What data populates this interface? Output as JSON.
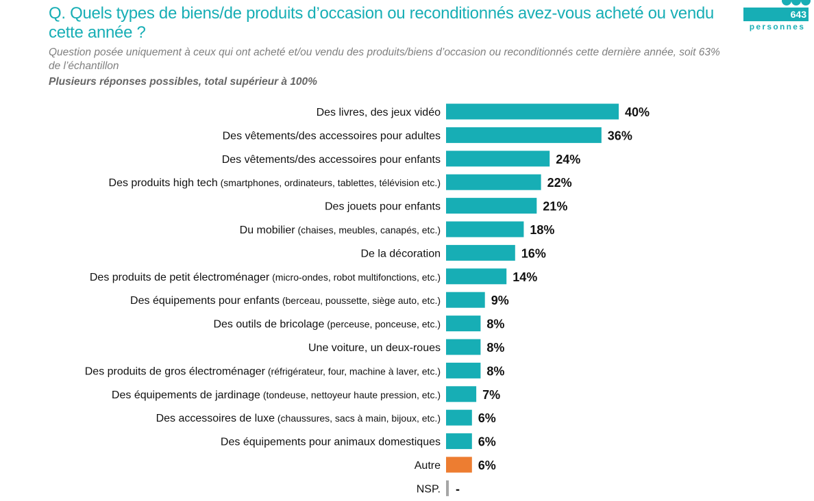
{
  "header": {
    "title": "Q. Quels types de biens/de produits d’occasion ou reconditionnés avez-vous acheté ou vendu cette année ?",
    "subtitle": "Question posée uniquement à ceux qui ont acheté et/ou vendu des produits/biens d’occasion ou reconditionnés cette dernière année, soit 63% de l’échantillon",
    "note": "Plusieurs réponses possibles, total supérieur à 100%"
  },
  "badge": {
    "count": "643",
    "label": "personnes",
    "icon": "people-icon"
  },
  "colors": {
    "accent": "#17AEB5",
    "other": "#ED7D31",
    "nsp": "#A6A6A6"
  },
  "chart_data": {
    "type": "bar",
    "orientation": "horizontal",
    "title": "Q. Quels types de biens/de produits d’occasion ou reconditionnés avez-vous acheté ou vendu cette année ?",
    "xlabel": "",
    "ylabel": "",
    "xlim": [
      0,
      40
    ],
    "grid": false,
    "legend": "none",
    "categories": [
      {
        "main": "Des livres, des jeux vidéo",
        "detail": ""
      },
      {
        "main": "Des vêtements/des accessoires pour adultes",
        "detail": ""
      },
      {
        "main": "Des vêtements/des accessoires pour enfants",
        "detail": ""
      },
      {
        "main": "Des produits high tech",
        "detail": "(smartphones, ordinateurs, tablettes, télévision etc.)"
      },
      {
        "main": "Des jouets pour enfants",
        "detail": ""
      },
      {
        "main": "Du mobilier",
        "detail": "(chaises, meubles, canapés, etc.)"
      },
      {
        "main": "De la décoration",
        "detail": ""
      },
      {
        "main": "Des produits de petit électroménager",
        "detail": "(micro-ondes, robot multifonctions, etc.)"
      },
      {
        "main": "Des équipements pour enfants",
        "detail": "(berceau, poussette, siège auto, etc.)"
      },
      {
        "main": "Des outils de bricolage",
        "detail": "(perceuse, ponceuse, etc.)"
      },
      {
        "main": "Une voiture, un deux-roues",
        "detail": ""
      },
      {
        "main": "Des produits de gros électroménager",
        "detail": "(réfrigérateur, four, machine à laver, etc.)"
      },
      {
        "main": "Des équipements de jardinage",
        "detail": "(tondeuse, nettoyeur haute pression, etc.)"
      },
      {
        "main": "Des accessoires de luxe",
        "detail": "(chaussures, sacs à main, bijoux, etc.)"
      },
      {
        "main": "Des équipements pour animaux domestiques",
        "detail": ""
      },
      {
        "main": "Autre",
        "detail": ""
      },
      {
        "main": "NSP.",
        "detail": ""
      }
    ],
    "values": [
      40,
      36,
      24,
      22,
      21,
      18,
      16,
      14,
      9,
      8,
      8,
      8,
      7,
      6,
      6,
      6,
      null
    ],
    "value_labels": [
      "40%",
      "36%",
      "24%",
      "22%",
      "21%",
      "18%",
      "16%",
      "14%",
      "9%",
      "8%",
      "8%",
      "8%",
      "7%",
      "6%",
      "6%",
      "6%",
      "-"
    ],
    "bar_kind": [
      "main",
      "main",
      "main",
      "main",
      "main",
      "main",
      "main",
      "main",
      "main",
      "main",
      "main",
      "main",
      "main",
      "main",
      "main",
      "other",
      "nsp"
    ]
  }
}
